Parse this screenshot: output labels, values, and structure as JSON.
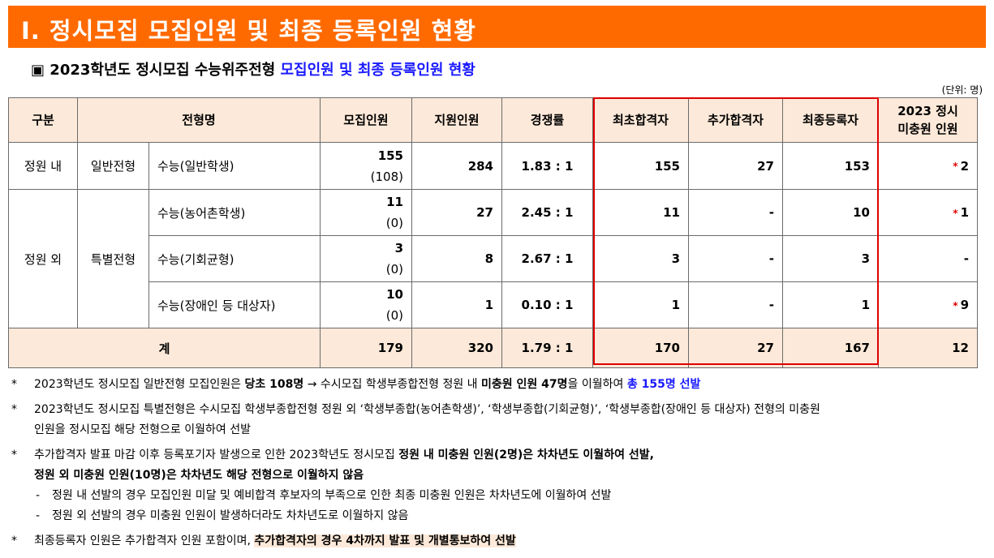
{
  "banner": {
    "title": "Ⅰ. 정시모집 모집인원 및 최종 등록인원 현황"
  },
  "subtitle": {
    "box": "▣",
    "main": "2023학년도 정시모집 수능위주전형",
    "highlight": "모집인원 및 최종 등록인원 현황"
  },
  "unit": "(단위: 명)",
  "table": {
    "headers": {
      "gubun": "구분",
      "name": "전형명",
      "quota": "모집인원",
      "applicants": "지원인원",
      "ratio": "경쟁률",
      "first_pass": "최초합격자",
      "extra_pass": "추가합격자",
      "final_reg": "최종등록자",
      "unfilled_line1": "2023 정시",
      "unfilled_line2": "미충원 인원"
    },
    "rows": [
      {
        "group": "정원 내",
        "type": "일반전형",
        "name": "수능(일반학생)",
        "quota": "155",
        "quota_orig": "(108)",
        "applicants": "284",
        "ratio": "1.83 : 1",
        "first": "155",
        "extra": "27",
        "final": "153",
        "star": "*",
        "unfilled": "2"
      },
      {
        "group": "정원 외",
        "type": "특별전형",
        "name": "수능(농어촌학생)",
        "quota": "11",
        "quota_orig": "(0)",
        "applicants": "27",
        "ratio": "2.45 : 1",
        "first": "11",
        "extra": "-",
        "final": "10",
        "star": "*",
        "unfilled": "1"
      },
      {
        "name": "수능(기회균형)",
        "quota": "3",
        "quota_orig": "(0)",
        "applicants": "8",
        "ratio": "2.67 : 1",
        "first": "3",
        "extra": "-",
        "final": "3",
        "star": "",
        "unfilled": "-"
      },
      {
        "name": "수능(장애인 등 대상자)",
        "quota": "10",
        "quota_orig": "(0)",
        "applicants": "1",
        "ratio": "0.10 : 1",
        "first": "1",
        "extra": "-",
        "final": "1",
        "star": "*",
        "unfilled": "9"
      }
    ],
    "total": {
      "label": "계",
      "quota": "179",
      "applicants": "320",
      "ratio": "1.79 : 1",
      "first": "170",
      "extra": "27",
      "final": "167",
      "unfilled": "12"
    }
  },
  "notes": {
    "mark": "*",
    "n1": {
      "a": "2023학년도 정시모집 일반전형 모집인원은 ",
      "b": "당초 108명",
      "c": " → 수시모집 학생부종합전형 정원 내 ",
      "d": "미충원 인원 47명",
      "e": "을 이월하여 ",
      "f": "총 155명 선발"
    },
    "n2": {
      "line1": "2023학년도 정시모집 특별전형은 수시모집 학생부종합전형 정원 외 ‘학생부종합(농어촌학생)’, ‘학생부종합(기회균형)’, ‘학생부종합(장애인 등 대상자) 전형의 미충원",
      "line2": "인원을 정시모집 해당 전형으로 이월하여 선발"
    },
    "n3": {
      "a": "추가합격자 발표 마감 이후 등록포기자 발생으로 인한 2023학년도 정시모집 ",
      "b": "정원 내 미충원 인원(2명)은 차차년도 이월하여 선발,",
      "line2": "정원 외 미충원 인원(10명)은 차차년도 해당 전형으로 이월하지 않음",
      "dash1": "정원 내 선발의 경우 모집인원 미달 및 예비합격 후보자의 부족으로 인한 최종 미충원 인원은 차차년도에 이월하여 선발",
      "dash2": "정원 외 선발의 경우 미충원 인원이 발생하더라도 차차년도로 이월하지 않음",
      "dash_mark": "-"
    },
    "n4": {
      "a": "최종등록자 인원은 추가합격자 인원 포함이며, ",
      "b": "추가합격자의 경우 4차까지 발표 및 개별통보하여 선발"
    }
  }
}
